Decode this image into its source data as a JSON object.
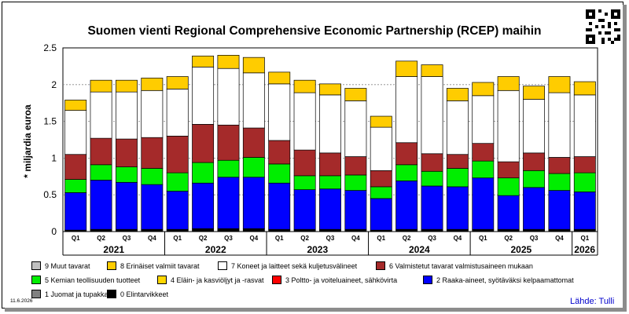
{
  "title": "Suomen vienti Regional Comprehensive Economic Partnership (RCEP) maihin",
  "ylabel": "* miljardia euroa",
  "date": "11.6.2026",
  "source": "Lähde: Tulli",
  "qr_icon": "qr-code-icon",
  "chart_data": {
    "type": "bar",
    "stacked": true,
    "title": "Suomen vienti Regional Comprehensive Economic Partnership (RCEP) maihin",
    "ylabel": "* miljardia euroa",
    "ylim": [
      0,
      2.5
    ],
    "yticks": [
      "0",
      "0.5",
      "1",
      "1.5",
      "2",
      "2.5"
    ],
    "grid": true,
    "legend_position": "bottom",
    "categories": [
      "2021 Q1",
      "2021 Q2",
      "2021 Q3",
      "2021 Q4",
      "2022 Q1",
      "2022 Q2",
      "2022 Q3",
      "2022 Q4",
      "2023 Q1",
      "2023 Q2",
      "2023 Q3",
      "2023 Q4",
      "2024 Q1",
      "2024 Q2",
      "2024 Q3",
      "2024 Q4",
      "2025 Q1",
      "2025 Q2",
      "2025 Q3",
      "2025 Q4",
      "2026 Q1"
    ],
    "quarter_labels": [
      "Q1",
      "Q2",
      "Q3",
      "Q4",
      "Q1",
      "Q2",
      "Q3",
      "Q4",
      "Q1",
      "Q2",
      "Q3",
      "Q4",
      "Q1",
      "Q2",
      "Q3",
      "Q4",
      "Q1",
      "Q2",
      "Q3",
      "Q4",
      "Q1"
    ],
    "year_labels": [
      {
        "label": "2021",
        "start": 0,
        "end": 3
      },
      {
        "label": "2022",
        "start": 4,
        "end": 7
      },
      {
        "label": "2023",
        "start": 8,
        "end": 11
      },
      {
        "label": "2024",
        "start": 12,
        "end": 15
      },
      {
        "label": "2025",
        "start": 16,
        "end": 19
      },
      {
        "label": "2026",
        "start": 20,
        "end": 20
      }
    ],
    "series": [
      {
        "name": "0 Elintarvikkeet",
        "color": "#000000",
        "values": [
          0.02,
          0.03,
          0.03,
          0.03,
          0.03,
          0.04,
          0.04,
          0.04,
          0.03,
          0.03,
          0.03,
          0.03,
          0.02,
          0.03,
          0.03,
          0.03,
          0.03,
          0.03,
          0.03,
          0.03,
          0.03
        ]
      },
      {
        "name": "1 Juomat ja tupakka",
        "color": "#808080",
        "values": [
          0,
          0,
          0,
          0,
          0,
          0,
          0,
          0,
          0,
          0,
          0,
          0,
          0,
          0,
          0,
          0,
          0,
          0,
          0,
          0,
          0
        ]
      },
      {
        "name": "2 Raaka-aineet, syötäväksi kelpaamattomat",
        "color": "#0000ff",
        "values": [
          0.51,
          0.67,
          0.64,
          0.61,
          0.52,
          0.62,
          0.7,
          0.7,
          0.63,
          0.54,
          0.55,
          0.53,
          0.43,
          0.66,
          0.59,
          0.58,
          0.7,
          0.46,
          0.57,
          0.53,
          0.51
        ]
      },
      {
        "name": "3 Poltto- ja voiteluaineet, sähkövirta",
        "color": "#ff0000",
        "values": [
          0,
          0,
          0,
          0,
          0,
          0,
          0,
          0,
          0,
          0,
          0,
          0,
          0,
          0,
          0,
          0,
          0,
          0,
          0,
          0,
          0
        ]
      },
      {
        "name": "4 Eläin- ja kasviöljyt ja -rasvat",
        "color": "#ffd700",
        "values": [
          0,
          0,
          0,
          0,
          0,
          0,
          0,
          0,
          0,
          0,
          0,
          0,
          0,
          0,
          0,
          0,
          0,
          0,
          0,
          0,
          0
        ]
      },
      {
        "name": "5 Kemian teollisuuden tuotteet",
        "color": "#00ee00",
        "values": [
          0.18,
          0.21,
          0.21,
          0.22,
          0.25,
          0.28,
          0.23,
          0.27,
          0.26,
          0.19,
          0.18,
          0.21,
          0.16,
          0.22,
          0.2,
          0.25,
          0.23,
          0.24,
          0.23,
          0.23,
          0.26
        ]
      },
      {
        "name": "6 Valmistetut tavarat valmistusaineen mukaan",
        "color": "#a52a2a",
        "values": [
          0.34,
          0.36,
          0.38,
          0.42,
          0.5,
          0.52,
          0.48,
          0.4,
          0.32,
          0.35,
          0.31,
          0.25,
          0.22,
          0.3,
          0.24,
          0.19,
          0.24,
          0.22,
          0.24,
          0.22,
          0.22
        ]
      },
      {
        "name": "7 Koneet ja laitteet sekä kuljetusvälineet",
        "color": "#ffffff",
        "values": [
          0.6,
          0.63,
          0.64,
          0.64,
          0.64,
          0.78,
          0.77,
          0.75,
          0.77,
          0.78,
          0.79,
          0.76,
          0.59,
          0.9,
          1.05,
          0.73,
          0.65,
          0.97,
          0.73,
          0.88,
          0.84
        ]
      },
      {
        "name": "8 Erinäiset valmiit tavarat",
        "color": "#ffcc00",
        "values": [
          0.14,
          0.16,
          0.16,
          0.17,
          0.17,
          0.15,
          0.18,
          0.21,
          0.16,
          0.17,
          0.15,
          0.17,
          0.15,
          0.21,
          0.16,
          0.17,
          0.18,
          0.19,
          0.18,
          0.22,
          0.18
        ]
      },
      {
        "name": "9 Muut tavarat",
        "color": "#c0c0c0",
        "values": [
          0,
          0,
          0,
          0,
          0,
          0,
          0,
          0,
          0,
          0,
          0,
          0,
          0,
          0,
          0,
          0,
          0,
          0,
          0,
          0,
          0
        ]
      }
    ]
  }
}
